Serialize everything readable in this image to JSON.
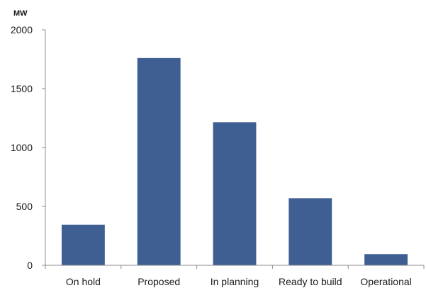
{
  "chart_data": {
    "type": "bar",
    "title": "",
    "xlabel": "",
    "ylabel": "MW",
    "categories": [
      "On hold",
      "Proposed",
      "In planning",
      "Ready to build",
      "Operational"
    ],
    "values": [
      345,
      1760,
      1215,
      570,
      95
    ],
    "ylim": [
      0,
      2000
    ],
    "yticks": [
      0,
      500,
      1000,
      1500,
      2000
    ],
    "grid": false,
    "legend": "none",
    "colors": {
      "bar": "#3f5f93",
      "axis": "#8c8c8c"
    }
  }
}
